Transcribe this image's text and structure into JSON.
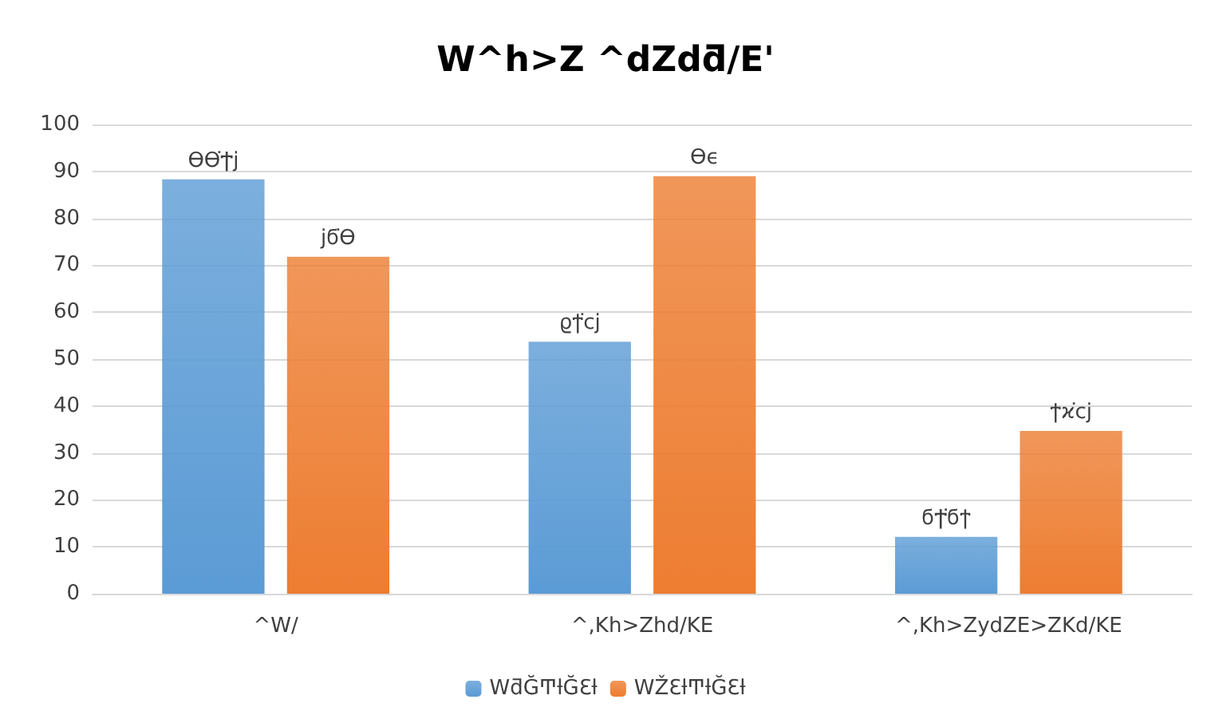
{
  "chart_data": {
    "type": "bar",
    "title": "W^h>Z ^dZdƌ/E'",
    "categories": [
      "^W/",
      "^,Kh>Zhd/KE",
      "^,Kh>ZydZE>ZKd/KE"
    ],
    "series": [
      {
        "name": "WƌĞͲƚĞƐƚ",
        "color": "#5b9bd5",
        "values": [
          88.3,
          53.7,
          12.1
        ],
        "value_labels": [
          "ϴϴ͘Ϯϳ",
          "ϱϯ͘ϲϳ",
          "ϭϮ͘ϭϯ"
        ]
      },
      {
        "name": "WŽƐƚͲƚĞƐƚ",
        "color": "#ed7d31",
        "values": [
          71.8,
          89,
          34.7
        ],
        "value_labels": [
          "ϳϭ͘ϴ",
          "ϴϵ",
          "ϯϰ͘ϲϳ"
        ]
      }
    ],
    "ylim": [
      0,
      100
    ],
    "yticks": [
      0,
      10,
      20,
      30,
      40,
      50,
      60,
      70,
      80,
      90,
      100
    ],
    "grid": "y",
    "legend": "bottom"
  }
}
